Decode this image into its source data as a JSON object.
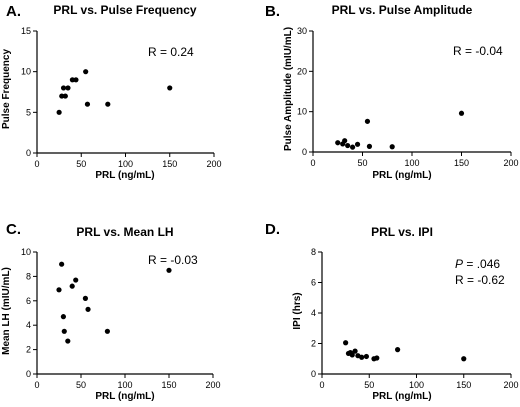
{
  "chart_data": [
    {
      "type": "scatter",
      "panel": "A.",
      "title": "PRL vs.  Pulse Frequency",
      "xlabel": "PRL (ng/mL)",
      "ylabel": "Pulse Frequency",
      "xlim": [
        0,
        200
      ],
      "ylim": [
        0,
        15
      ],
      "xticks": [
        0,
        50,
        100,
        150,
        200
      ],
      "yticks": [
        0,
        5,
        10,
        15
      ],
      "annotations": [
        "R = 0.24"
      ],
      "grid": false,
      "points": [
        {
          "x": 25,
          "y": 5
        },
        {
          "x": 28,
          "y": 7
        },
        {
          "x": 30,
          "y": 8
        },
        {
          "x": 32,
          "y": 7
        },
        {
          "x": 35,
          "y": 8
        },
        {
          "x": 40,
          "y": 9
        },
        {
          "x": 44,
          "y": 9
        },
        {
          "x": 55,
          "y": 10
        },
        {
          "x": 57,
          "y": 6
        },
        {
          "x": 80,
          "y": 6
        },
        {
          "x": 150,
          "y": 8
        }
      ]
    },
    {
      "type": "scatter",
      "panel": "B.",
      "title": "PRL vs. Pulse Amplitude",
      "xlabel": "PRL (ng/mL)",
      "ylabel": "Pulse Amplitude (mIU/mL)",
      "xlim": [
        0,
        200
      ],
      "ylim": [
        0,
        30
      ],
      "xticks": [
        0,
        50,
        100,
        150,
        200
      ],
      "yticks": [
        0,
        10,
        20,
        30
      ],
      "annotations": [
        "R = -0.04"
      ],
      "grid": false,
      "points": [
        {
          "x": 25,
          "y": 2.3
        },
        {
          "x": 30,
          "y": 2.0
        },
        {
          "x": 32,
          "y": 2.8
        },
        {
          "x": 35,
          "y": 1.6
        },
        {
          "x": 40,
          "y": 1.2
        },
        {
          "x": 45,
          "y": 1.9
        },
        {
          "x": 55,
          "y": 7.6
        },
        {
          "x": 57,
          "y": 1.4
        },
        {
          "x": 80,
          "y": 1.3
        },
        {
          "x": 150,
          "y": 9.6
        }
      ]
    },
    {
      "type": "scatter",
      "panel": "C.",
      "title": "PRL vs. Mean LH",
      "xlabel": "PRL (ng/mL)",
      "ylabel": "Mean LH (mIU/mL)",
      "xlim": [
        0,
        200
      ],
      "ylim": [
        0,
        10
      ],
      "xticks": [
        0,
        50,
        100,
        150,
        200
      ],
      "yticks": [
        0,
        2,
        4,
        6,
        8,
        10
      ],
      "annotations": [
        "R = -0.03"
      ],
      "grid": false,
      "points": [
        {
          "x": 25,
          "y": 6.9
        },
        {
          "x": 28,
          "y": 9.0
        },
        {
          "x": 30,
          "y": 4.7
        },
        {
          "x": 31,
          "y": 3.5
        },
        {
          "x": 35,
          "y": 2.7
        },
        {
          "x": 40,
          "y": 7.2
        },
        {
          "x": 44,
          "y": 7.7
        },
        {
          "x": 55,
          "y": 6.2
        },
        {
          "x": 58,
          "y": 5.3
        },
        {
          "x": 80,
          "y": 3.5
        },
        {
          "x": 150,
          "y": 8.5
        }
      ]
    },
    {
      "type": "scatter",
      "panel": "D.",
      "title": "PRL vs. IPI",
      "xlabel": "PRL (ng/mL)",
      "ylabel": "IPI (hrs)",
      "xlim": [
        0,
        200
      ],
      "ylim": [
        0,
        8
      ],
      "xticks": [
        0,
        50,
        100,
        150,
        200
      ],
      "yticks": [
        0,
        2,
        4,
        6,
        8
      ],
      "annotations": [
        "P",
        " = .046",
        "R = -0.62"
      ],
      "grid": false,
      "points": [
        {
          "x": 25,
          "y": 2.05
        },
        {
          "x": 28,
          "y": 1.35
        },
        {
          "x": 30,
          "y": 1.4
        },
        {
          "x": 32,
          "y": 1.25
        },
        {
          "x": 35,
          "y": 1.5
        },
        {
          "x": 38,
          "y": 1.2
        },
        {
          "x": 42,
          "y": 1.1
        },
        {
          "x": 47,
          "y": 1.15
        },
        {
          "x": 55,
          "y": 1.0
        },
        {
          "x": 58,
          "y": 1.05
        },
        {
          "x": 80,
          "y": 1.6
        },
        {
          "x": 150,
          "y": 1.0
        }
      ]
    }
  ]
}
